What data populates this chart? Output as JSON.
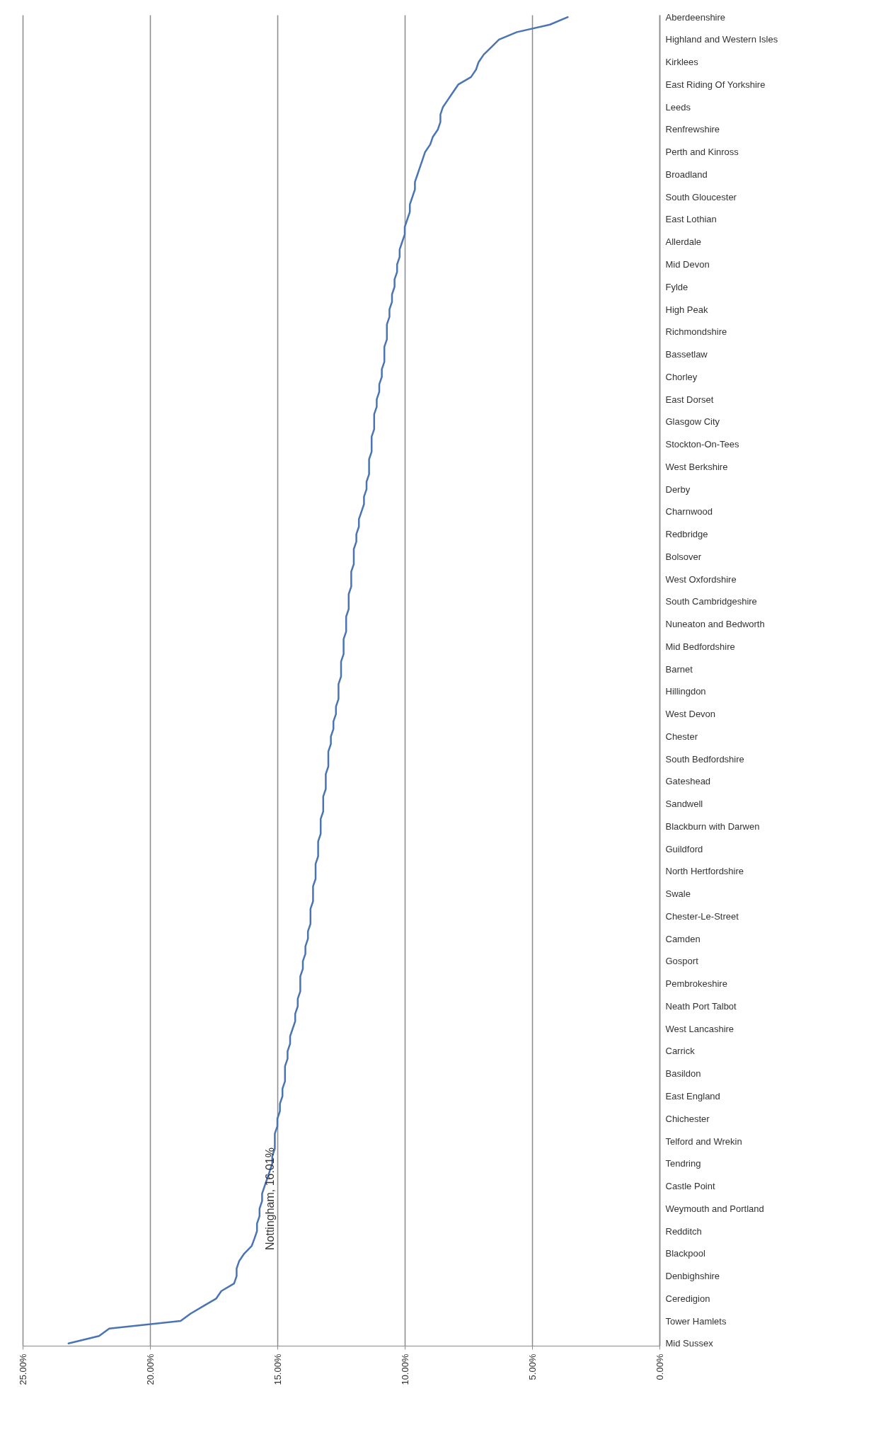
{
  "chart_data": {
    "type": "line",
    "orientation": "horizontal",
    "grid": "x",
    "line_style": "solid",
    "categories": [
      "Aberdeenshire",
      null,
      null,
      "Highland and Western Isles",
      null,
      null,
      "Kirklees",
      null,
      null,
      "East Riding Of Yorkshire",
      null,
      null,
      "Leeds",
      null,
      null,
      "Renfrewshire",
      null,
      null,
      "Perth and Kinross",
      null,
      null,
      "Broadland",
      null,
      null,
      "South Gloucester",
      null,
      null,
      "East Lothian",
      null,
      null,
      "Allerdale",
      null,
      null,
      "Mid Devon",
      null,
      null,
      "Fylde",
      null,
      null,
      "High Peak",
      null,
      null,
      "Richmondshire",
      null,
      null,
      "Bassetlaw",
      null,
      null,
      "Chorley",
      null,
      null,
      "East Dorset",
      null,
      null,
      "Glasgow City",
      null,
      null,
      "Stockton-On-Tees",
      null,
      null,
      "West Berkshire",
      null,
      null,
      "Derby",
      null,
      null,
      "Charnwood",
      null,
      null,
      "Redbridge",
      null,
      null,
      "Bolsover",
      null,
      null,
      "West Oxfordshire",
      null,
      null,
      "South Cambridgeshire",
      null,
      null,
      "Nuneaton and Bedworth",
      null,
      null,
      "Mid Bedfordshire",
      null,
      null,
      "Barnet",
      null,
      null,
      "Hillingdon",
      null,
      null,
      "West Devon",
      null,
      null,
      "Chester",
      null,
      null,
      "South Bedfordshire",
      null,
      null,
      "Gateshead",
      null,
      null,
      "Sandwell",
      null,
      null,
      "Blackburn with Darwen",
      null,
      null,
      "Guildford",
      null,
      null,
      "North Hertfordshire",
      null,
      null,
      "Swale",
      null,
      null,
      "Chester-Le-Street",
      null,
      null,
      "Camden",
      null,
      null,
      "Gosport",
      null,
      null,
      "Pembrokeshire",
      null,
      null,
      "Neath Port Talbot",
      null,
      null,
      "West Lancashire",
      null,
      null,
      "Carrick",
      null,
      null,
      "Basildon",
      null,
      null,
      "East England",
      null,
      null,
      "Chichester",
      null,
      null,
      "Telford and Wrekin",
      null,
      null,
      "Tendring",
      null,
      null,
      "Castle Point",
      null,
      null,
      "Weymouth and Portland",
      null,
      null,
      "Redditch",
      null,
      null,
      "Blackpool",
      null,
      null,
      "Denbighshire",
      null,
      null,
      "Ceredigion",
      null,
      null,
      "Tower Hamlets",
      null,
      null,
      "Mid Sussex"
    ],
    "series": [
      {
        "color": "#4a74b4",
        "values": [
          3.6,
          4.3,
          5.6,
          6.3,
          6.6,
          6.9,
          7.1,
          7.2,
          7.4,
          7.9,
          8.1,
          8.3,
          8.5,
          8.6,
          8.6,
          8.7,
          8.9,
          9.0,
          9.2,
          9.3,
          9.4,
          9.5,
          9.6,
          9.6,
          9.7,
          9.8,
          9.8,
          9.9,
          10.0,
          10.0,
          10.1,
          10.2,
          10.2,
          10.3,
          10.3,
          10.4,
          10.4,
          10.5,
          10.5,
          10.6,
          10.6,
          10.7,
          10.7,
          10.7,
          10.8,
          10.8,
          10.8,
          10.9,
          10.9,
          11.0,
          11.0,
          11.1,
          11.1,
          11.2,
          11.2,
          11.2,
          11.3,
          11.3,
          11.3,
          11.4,
          11.4,
          11.4,
          11.5,
          11.5,
          11.6,
          11.6,
          11.7,
          11.8,
          11.8,
          11.9,
          11.9,
          12.0,
          12.0,
          12.0,
          12.1,
          12.1,
          12.1,
          12.2,
          12.2,
          12.2,
          12.3,
          12.3,
          12.3,
          12.4,
          12.4,
          12.4,
          12.5,
          12.5,
          12.5,
          12.6,
          12.6,
          12.6,
          12.7,
          12.7,
          12.8,
          12.8,
          12.9,
          12.9,
          13.0,
          13.0,
          13.0,
          13.1,
          13.1,
          13.1,
          13.2,
          13.2,
          13.2,
          13.3,
          13.3,
          13.3,
          13.4,
          13.4,
          13.4,
          13.5,
          13.5,
          13.5,
          13.6,
          13.6,
          13.6,
          13.7,
          13.7,
          13.7,
          13.8,
          13.8,
          13.9,
          13.9,
          14.0,
          14.0,
          14.1,
          14.1,
          14.1,
          14.2,
          14.2,
          14.3,
          14.3,
          14.4,
          14.5,
          14.5,
          14.6,
          14.6,
          14.7,
          14.7,
          14.7,
          14.8,
          14.8,
          14.9,
          14.9,
          15.0,
          15.0,
          15.1,
          15.1,
          15.1,
          15.2,
          15.2,
          15.3,
          15.4,
          15.5,
          15.6,
          15.6,
          15.7,
          15.7,
          15.8,
          15.8,
          15.9,
          16.01,
          16.3,
          16.5,
          16.6,
          16.6,
          16.7,
          17.2,
          17.4,
          17.9,
          18.4,
          18.8,
          21.6,
          22.0,
          23.2
        ]
      }
    ],
    "xlim": [
      25,
      0
    ],
    "xticks": [
      {
        "value": 25,
        "label": "25.00%"
      },
      {
        "value": 20,
        "label": "20.00%"
      },
      {
        "value": 15,
        "label": "15.00%"
      },
      {
        "value": 10,
        "label": "10.00%"
      },
      {
        "value": 5,
        "label": "5.00%"
      },
      {
        "value": 0,
        "label": "0.00%"
      }
    ],
    "annotations": [
      "Nottingham, 16.01%"
    ]
  }
}
